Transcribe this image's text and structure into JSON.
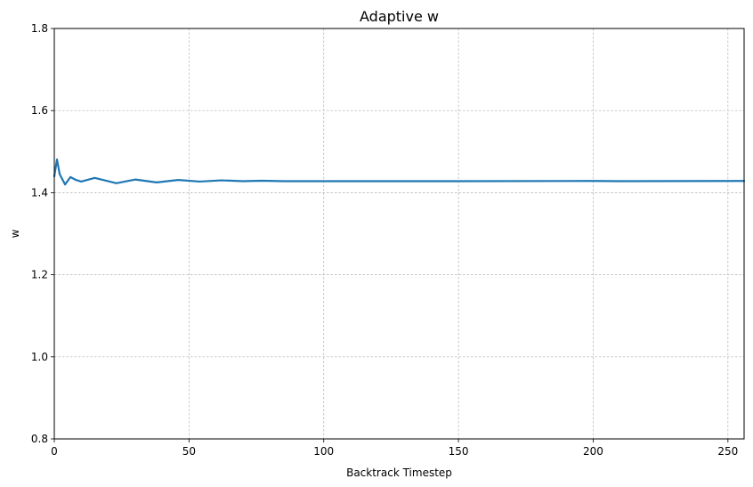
{
  "chart_data": {
    "type": "line",
    "title": "Adaptive w",
    "xlabel": "Backtrack Timestep",
    "ylabel": "w",
    "xlim": [
      0,
      256
    ],
    "ylim": [
      0.8,
      1.8
    ],
    "xticks": [
      0,
      50,
      100,
      150,
      200,
      250
    ],
    "yticks": [
      0.8,
      1.0,
      1.2,
      1.4,
      1.6,
      1.8
    ],
    "xtick_labels": [
      "0",
      "50",
      "100",
      "150",
      "200",
      "250"
    ],
    "ytick_labels": [
      "0.8",
      "1.0",
      "1.2",
      "1.4",
      "1.6",
      "1.8"
    ],
    "grid": true,
    "series": [
      {
        "color": "#1f77b4",
        "x": [
          0,
          1,
          2,
          4,
          6,
          8,
          10,
          15,
          23,
          30,
          38,
          46,
          54,
          62,
          70,
          77,
          85,
          100,
          150,
          200,
          210,
          256
        ],
        "y": [
          1.44,
          1.481,
          1.445,
          1.42,
          1.438,
          1.431,
          1.427,
          1.436,
          1.423,
          1.432,
          1.425,
          1.431,
          1.427,
          1.43,
          1.428,
          1.429,
          1.428,
          1.428,
          1.428,
          1.4285,
          1.428,
          1.4285
        ]
      }
    ]
  }
}
